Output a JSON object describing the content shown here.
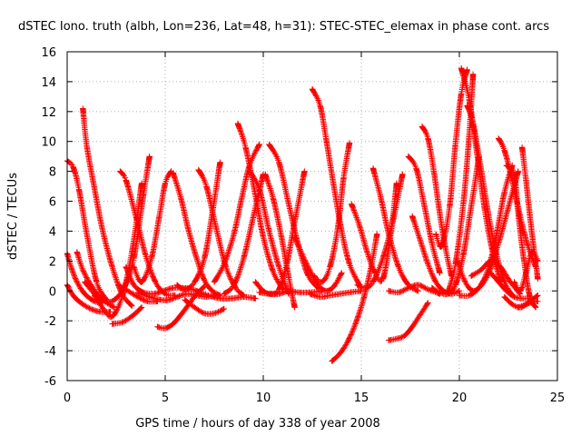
{
  "chart_data": {
    "type": "scatter",
    "title": "dSTEC Iono. truth (albh, Lon=236, Lat=48, h=31): STEC-STEC_elemax in phase cont. arcs",
    "xlabel": "GPS time / hours of day 338 of year 2008",
    "ylabel": "dSTEC  / TECUs",
    "xlim": [
      0,
      25
    ],
    "ylim": [
      -6,
      16
    ],
    "xticks": [
      "0",
      "5",
      "10",
      "15",
      "20",
      "25"
    ],
    "yticks": [
      "-6",
      "-4",
      "-2",
      "0",
      "2",
      "4",
      "6",
      "8",
      "10",
      "12",
      "14",
      "16"
    ],
    "grid": true,
    "marker": "plus",
    "color": "#ff0000",
    "series": [
      {
        "x": [
          0.0,
          0.3,
          0.6,
          1.0,
          1.5,
          2.0
        ],
        "y": [
          8.7,
          8.3,
          6.8,
          3.8,
          0.6,
          -0.6
        ]
      },
      {
        "x": [
          0.0,
          0.2,
          0.5,
          0.9,
          1.4,
          1.8
        ],
        "y": [
          2.5,
          1.6,
          0.6,
          -0.2,
          -0.7,
          -0.8
        ]
      },
      {
        "x": [
          0.0,
          0.3,
          0.7,
          1.2,
          1.7,
          2.2
        ],
        "y": [
          0.4,
          -0.3,
          -0.8,
          -1.2,
          -1.4,
          -1.4
        ]
      },
      {
        "x": [
          0.5,
          0.8,
          1.3,
          1.8,
          2.4
        ],
        "y": [
          2.6,
          1.4,
          0.2,
          -0.6,
          -1.1
        ]
      },
      {
        "x": [
          0.8,
          1.0,
          1.4,
          1.8,
          2.3,
          2.8,
          3.3
        ],
        "y": [
          12.2,
          9.7,
          6.8,
          4.1,
          1.6,
          -0.2,
          -1.0
        ]
      },
      {
        "x": [
          0.9,
          1.4,
          2.0,
          2.4,
          2.9,
          3.4,
          3.9,
          4.2
        ],
        "y": [
          0.6,
          -0.2,
          -0.7,
          -0.6,
          0.2,
          2.2,
          6.5,
          9.0
        ]
      },
      {
        "x": [
          1.4,
          1.9,
          2.3,
          2.8,
          3.3,
          3.8
        ],
        "y": [
          -0.3,
          -1.3,
          -1.7,
          -0.4,
          2.6,
          7.2
        ]
      },
      {
        "x": [
          2.3,
          2.8,
          3.3,
          3.8
        ],
        "y": [
          -2.2,
          -2.1,
          -1.7,
          -1.1
        ]
      },
      {
        "x": [
          2.6,
          3.1,
          3.6,
          4.1,
          4.6
        ],
        "y": [
          0.4,
          0.0,
          -0.4,
          -0.7,
          -0.7
        ]
      },
      {
        "x": [
          2.7,
          3.0,
          3.5,
          4.0,
          4.5,
          5.0,
          5.5
        ],
        "y": [
          8.0,
          7.4,
          5.0,
          2.4,
          0.6,
          -0.2,
          -0.3
        ]
      },
      {
        "x": [
          3.0,
          3.4,
          3.9,
          4.4,
          4.9,
          5.4,
          5.9,
          6.4,
          6.9
        ],
        "y": [
          1.6,
          0.4,
          -0.1,
          -0.2,
          0.0,
          0.2,
          0.2,
          0.1,
          -0.2
        ]
      },
      {
        "x": [
          3.6,
          4.2,
          4.8,
          5.2,
          5.6,
          6.1,
          6.6,
          7.1,
          7.6
        ],
        "y": [
          -0.1,
          -0.4,
          -0.6,
          -0.6,
          -0.4,
          -0.2,
          -0.3,
          -0.4,
          -0.3
        ]
      },
      {
        "x": [
          3.4,
          3.8,
          4.3,
          4.7,
          5.0,
          5.3
        ],
        "y": [
          1.6,
          0.6,
          2.2,
          5.0,
          7.2,
          8.0
        ]
      },
      {
        "x": [
          4.6,
          5.0,
          5.4,
          5.8,
          6.2,
          6.6,
          7.0
        ],
        "y": [
          -2.4,
          -2.5,
          -2.2,
          -1.6,
          -0.9,
          -0.2,
          0.3
        ]
      },
      {
        "x": [
          5.4,
          5.8,
          6.2,
          6.6,
          7.0,
          7.4,
          7.8
        ],
        "y": [
          7.9,
          6.2,
          4.0,
          2.2,
          0.7,
          0.0,
          -0.3
        ]
      },
      {
        "x": [
          5.6,
          6.0,
          6.5,
          7.0,
          7.4,
          7.8
        ],
        "y": [
          0.4,
          0.1,
          0.6,
          2.2,
          5.2,
          8.6
        ]
      },
      {
        "x": [
          6.0,
          6.5,
          7.0,
          7.5,
          8.0
        ],
        "y": [
          -0.6,
          -1.1,
          -1.5,
          -1.5,
          -1.2
        ]
      },
      {
        "x": [
          6.7,
          7.1,
          7.6,
          8.1,
          8.6,
          9.0
        ],
        "y": [
          8.1,
          7.0,
          4.2,
          1.6,
          0.2,
          -0.3
        ]
      },
      {
        "x": [
          6.6,
          7.2,
          7.8,
          8.4,
          9.0,
          9.6
        ],
        "y": [
          0.0,
          -0.3,
          -0.5,
          -0.5,
          -0.4,
          -0.5
        ]
      },
      {
        "x": [
          7.5,
          8.0,
          8.5,
          8.9,
          9.3,
          9.8
        ],
        "y": [
          0.6,
          1.8,
          3.8,
          6.2,
          8.4,
          9.8
        ]
      },
      {
        "x": [
          8.0,
          8.5,
          9.0,
          9.5,
          10.0
        ],
        "y": [
          -0.2,
          0.4,
          2.2,
          5.0,
          7.8
        ]
      },
      {
        "x": [
          8.7,
          9.1,
          9.6,
          10.0,
          10.5,
          11.0
        ],
        "y": [
          11.2,
          9.6,
          6.4,
          3.6,
          1.3,
          0.1
        ]
      },
      {
        "x": [
          9.3,
          9.8,
          10.3,
          10.8,
          11.3
        ],
        "y": [
          8.0,
          6.8,
          4.0,
          1.6,
          -0.2
        ]
      },
      {
        "x": [
          9.6,
          10.0,
          10.4,
          10.8,
          11.2,
          11.6,
          12.1
        ],
        "y": [
          0.6,
          0.0,
          -0.2,
          0.1,
          1.8,
          4.6,
          8.0
        ]
      },
      {
        "x": [
          10.3,
          10.8,
          11.3,
          11.8,
          12.3,
          12.8
        ],
        "y": [
          9.8,
          8.6,
          5.8,
          3.0,
          1.0,
          0.2
        ]
      },
      {
        "x": [
          9.8,
          10.3,
          10.8,
          11.3,
          11.8,
          12.4,
          13.0
        ],
        "y": [
          -0.1,
          -0.2,
          -0.2,
          0.0,
          -0.1,
          -0.1,
          0.0
        ]
      },
      {
        "x": [
          10.1,
          10.5,
          10.9,
          11.3,
          11.6
        ],
        "y": [
          7.8,
          6.2,
          3.8,
          0.9,
          -1.1
        ]
      },
      {
        "x": [
          11.6,
          12.0,
          12.4,
          12.8,
          13.2,
          13.6,
          14.0
        ],
        "y": [
          3.6,
          2.4,
          1.3,
          0.4,
          0.0,
          0.3,
          1.2
        ]
      },
      {
        "x": [
          12.5,
          12.9,
          13.2,
          13.6,
          14.0,
          14.4,
          14.9
        ],
        "y": [
          13.5,
          12.4,
          10.2,
          7.0,
          4.0,
          1.8,
          0.4
        ]
      },
      {
        "x": [
          12.4,
          12.9,
          13.4,
          13.9,
          14.4,
          15.0
        ],
        "y": [
          -0.2,
          -0.4,
          -0.3,
          -0.2,
          -0.1,
          0.0
        ]
      },
      {
        "x": [
          12.6,
          13.0,
          13.4,
          13.8,
          14.1,
          14.4
        ],
        "y": [
          1.0,
          0.6,
          1.6,
          4.2,
          7.6,
          9.9
        ]
      },
      {
        "x": [
          13.5,
          13.9,
          14.3,
          14.7,
          15.1,
          15.5,
          15.8
        ],
        "y": [
          -4.7,
          -4.2,
          -3.4,
          -2.2,
          -0.6,
          1.6,
          3.8
        ]
      },
      {
        "x": [
          14.5,
          14.9,
          15.3,
          15.7,
          16.1,
          16.5,
          16.8
        ],
        "y": [
          5.8,
          4.4,
          2.6,
          1.2,
          0.8,
          3.8,
          7.2
        ]
      },
      {
        "x": [
          14.8,
          15.2,
          15.6,
          16.1,
          16.6,
          17.1
        ],
        "y": [
          0.4,
          0.2,
          0.6,
          2.2,
          4.6,
          7.8
        ]
      },
      {
        "x": [
          15.6,
          16.0,
          16.4,
          16.9,
          17.4,
          17.9
        ],
        "y": [
          8.2,
          6.2,
          3.8,
          1.6,
          0.4,
          0.0
        ]
      },
      {
        "x": [
          16.4,
          16.8,
          17.2,
          17.6,
          18.0,
          18.4
        ],
        "y": [
          -3.3,
          -3.2,
          -3.0,
          -2.4,
          -1.6,
          -0.8
        ]
      },
      {
        "x": [
          16.4,
          16.9,
          17.4,
          17.9,
          18.4,
          19.0
        ],
        "y": [
          0.0,
          -0.1,
          0.2,
          0.4,
          0.1,
          -0.2
        ]
      },
      {
        "x": [
          17.4,
          17.8,
          18.2,
          18.6,
          19.0
        ],
        "y": [
          9.0,
          8.2,
          5.8,
          3.2,
          1.2
        ]
      },
      {
        "x": [
          17.6,
          18.0,
          18.4,
          18.8,
          19.2,
          19.6,
          20.0
        ],
        "y": [
          5.0,
          3.4,
          1.8,
          0.6,
          0.0,
          -0.2,
          0.0
        ]
      },
      {
        "x": [
          18.1,
          18.4,
          18.7,
          19.0,
          19.3,
          19.6
        ],
        "y": [
          11.0,
          10.2,
          8.0,
          5.2,
          2.8,
          1.0
        ]
      },
      {
        "x": [
          18.6,
          19.0,
          19.4,
          19.8,
          20.2,
          20.6,
          21.0
        ],
        "y": [
          0.2,
          -0.1,
          -0.2,
          0.4,
          2.4,
          5.6,
          9.0
        ]
      },
      {
        "x": [
          18.8,
          19.1,
          19.5,
          19.8,
          20.1,
          20.4
        ],
        "y": [
          3.8,
          3.0,
          5.6,
          9.8,
          13.2,
          14.8
        ]
      },
      {
        "x": [
          19.4,
          19.8,
          20.2,
          20.5,
          20.7
        ],
        "y": [
          -0.2,
          1.8,
          5.8,
          10.4,
          14.5
        ]
      },
      {
        "x": [
          20.1,
          20.5,
          20.9,
          21.3,
          21.7,
          22.1
        ],
        "y": [
          14.9,
          12.8,
          9.2,
          5.4,
          2.6,
          0.6
        ]
      },
      {
        "x": [
          20.4,
          20.7,
          21.1,
          21.5,
          21.9,
          22.3,
          22.7
        ],
        "y": [
          12.4,
          11.2,
          8.2,
          5.0,
          2.4,
          0.6,
          -0.3
        ]
      },
      {
        "x": [
          19.9,
          20.3,
          20.7,
          21.1,
          21.5,
          21.9,
          22.3,
          22.7
        ],
        "y": [
          2.0,
          0.6,
          0.0,
          0.4,
          1.6,
          3.8,
          6.6,
          8.4
        ]
      },
      {
        "x": [
          20.0,
          20.5,
          21.0,
          21.5,
          22.0,
          22.5,
          23.0
        ],
        "y": [
          -0.3,
          -0.3,
          0.2,
          1.2,
          3.2,
          5.6,
          8.0
        ]
      },
      {
        "x": [
          20.6,
          21.1,
          21.6,
          22.1,
          22.6,
          23.1
        ],
        "y": [
          1.0,
          1.4,
          2.0,
          1.6,
          0.6,
          -0.2
        ]
      },
      {
        "x": [
          21.6,
          22.0,
          22.4,
          22.8,
          23.2,
          23.6
        ],
        "y": [
          1.2,
          0.6,
          0.0,
          -0.4,
          -0.5,
          -0.5
        ]
      },
      {
        "x": [
          22.0,
          22.3,
          22.7,
          23.1,
          23.5,
          23.9
        ],
        "y": [
          10.2,
          9.4,
          7.4,
          5.0,
          3.0,
          1.6
        ]
      },
      {
        "x": [
          22.3,
          22.7,
          23.1,
          23.4,
          23.7,
          24.0
        ],
        "y": [
          -0.4,
          -0.9,
          -1.1,
          -0.9,
          -0.6,
          -0.3
        ]
      },
      {
        "x": [
          22.4,
          22.8,
          23.0,
          23.3,
          23.6,
          23.9
        ],
        "y": [
          8.4,
          7.8,
          5.2,
          2.0,
          -0.4,
          -1.1
        ]
      },
      {
        "x": [
          22.8,
          23.1,
          23.4,
          23.7,
          24.0
        ],
        "y": [
          0.6,
          0.0,
          1.2,
          2.6,
          2.0
        ]
      },
      {
        "x": [
          23.0,
          23.4,
          23.8,
          24.0
        ],
        "y": [
          -1.1,
          -0.9,
          -0.7,
          -0.7
        ]
      },
      {
        "x": [
          23.2,
          23.4,
          23.6,
          23.8,
          24.0
        ],
        "y": [
          9.6,
          7.4,
          5.0,
          2.8,
          0.8
        ]
      }
    ]
  }
}
